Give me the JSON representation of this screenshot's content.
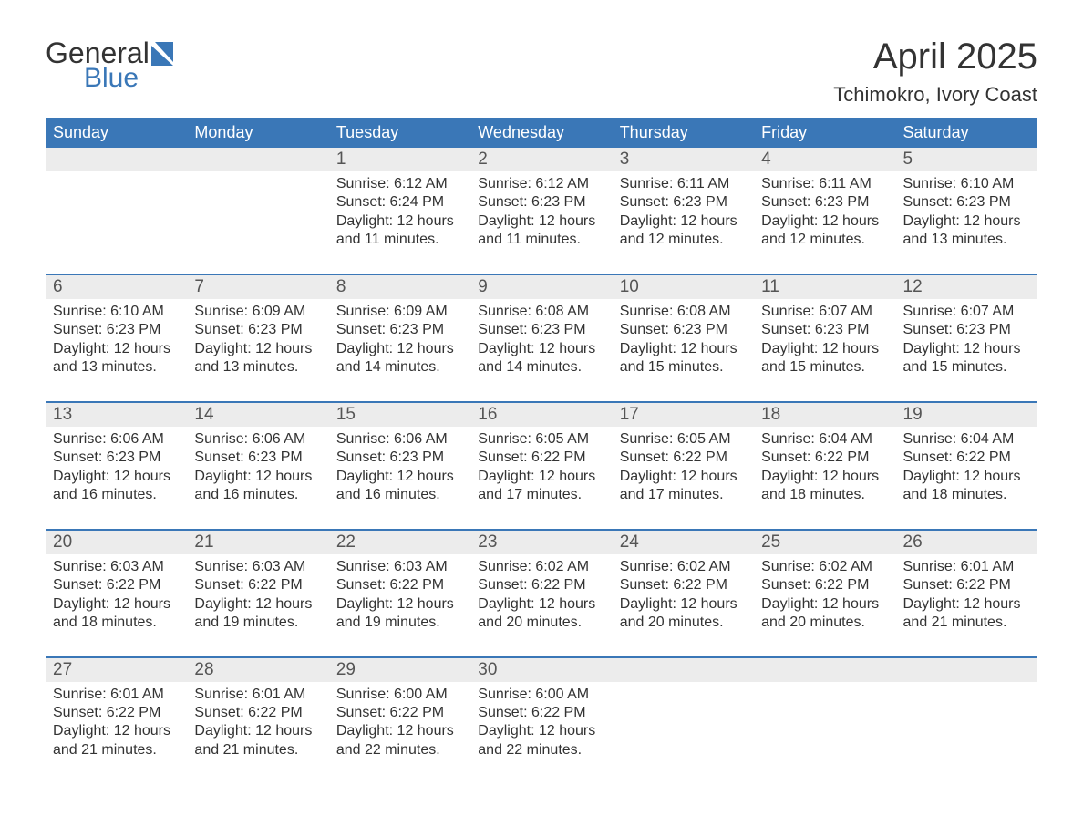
{
  "brand": {
    "name_part1": "General",
    "name_part2": "Blue"
  },
  "title": "April 2025",
  "subtitle": "Tchimokro, Ivory Coast",
  "colors": {
    "header_bg": "#3a77b7",
    "daynum_bg": "#ececec",
    "week_border": "#3a77b7",
    "text": "#333333",
    "background": "#ffffff"
  },
  "day_headers": [
    "Sunday",
    "Monday",
    "Tuesday",
    "Wednesday",
    "Thursday",
    "Friday",
    "Saturday"
  ],
  "weeks": [
    [
      {
        "num": "",
        "sunrise": "",
        "sunset": "",
        "daylight": ""
      },
      {
        "num": "",
        "sunrise": "",
        "sunset": "",
        "daylight": ""
      },
      {
        "num": "1",
        "sunrise": "Sunrise: 6:12 AM",
        "sunset": "Sunset: 6:24 PM",
        "daylight": "Daylight: 12 hours and 11 minutes."
      },
      {
        "num": "2",
        "sunrise": "Sunrise: 6:12 AM",
        "sunset": "Sunset: 6:23 PM",
        "daylight": "Daylight: 12 hours and 11 minutes."
      },
      {
        "num": "3",
        "sunrise": "Sunrise: 6:11 AM",
        "sunset": "Sunset: 6:23 PM",
        "daylight": "Daylight: 12 hours and 12 minutes."
      },
      {
        "num": "4",
        "sunrise": "Sunrise: 6:11 AM",
        "sunset": "Sunset: 6:23 PM",
        "daylight": "Daylight: 12 hours and 12 minutes."
      },
      {
        "num": "5",
        "sunrise": "Sunrise: 6:10 AM",
        "sunset": "Sunset: 6:23 PM",
        "daylight": "Daylight: 12 hours and 13 minutes."
      }
    ],
    [
      {
        "num": "6",
        "sunrise": "Sunrise: 6:10 AM",
        "sunset": "Sunset: 6:23 PM",
        "daylight": "Daylight: 12 hours and 13 minutes."
      },
      {
        "num": "7",
        "sunrise": "Sunrise: 6:09 AM",
        "sunset": "Sunset: 6:23 PM",
        "daylight": "Daylight: 12 hours and 13 minutes."
      },
      {
        "num": "8",
        "sunrise": "Sunrise: 6:09 AM",
        "sunset": "Sunset: 6:23 PM",
        "daylight": "Daylight: 12 hours and 14 minutes."
      },
      {
        "num": "9",
        "sunrise": "Sunrise: 6:08 AM",
        "sunset": "Sunset: 6:23 PM",
        "daylight": "Daylight: 12 hours and 14 minutes."
      },
      {
        "num": "10",
        "sunrise": "Sunrise: 6:08 AM",
        "sunset": "Sunset: 6:23 PM",
        "daylight": "Daylight: 12 hours and 15 minutes."
      },
      {
        "num": "11",
        "sunrise": "Sunrise: 6:07 AM",
        "sunset": "Sunset: 6:23 PM",
        "daylight": "Daylight: 12 hours and 15 minutes."
      },
      {
        "num": "12",
        "sunrise": "Sunrise: 6:07 AM",
        "sunset": "Sunset: 6:23 PM",
        "daylight": "Daylight: 12 hours and 15 minutes."
      }
    ],
    [
      {
        "num": "13",
        "sunrise": "Sunrise: 6:06 AM",
        "sunset": "Sunset: 6:23 PM",
        "daylight": "Daylight: 12 hours and 16 minutes."
      },
      {
        "num": "14",
        "sunrise": "Sunrise: 6:06 AM",
        "sunset": "Sunset: 6:23 PM",
        "daylight": "Daylight: 12 hours and 16 minutes."
      },
      {
        "num": "15",
        "sunrise": "Sunrise: 6:06 AM",
        "sunset": "Sunset: 6:23 PM",
        "daylight": "Daylight: 12 hours and 16 minutes."
      },
      {
        "num": "16",
        "sunrise": "Sunrise: 6:05 AM",
        "sunset": "Sunset: 6:22 PM",
        "daylight": "Daylight: 12 hours and 17 minutes."
      },
      {
        "num": "17",
        "sunrise": "Sunrise: 6:05 AM",
        "sunset": "Sunset: 6:22 PM",
        "daylight": "Daylight: 12 hours and 17 minutes."
      },
      {
        "num": "18",
        "sunrise": "Sunrise: 6:04 AM",
        "sunset": "Sunset: 6:22 PM",
        "daylight": "Daylight: 12 hours and 18 minutes."
      },
      {
        "num": "19",
        "sunrise": "Sunrise: 6:04 AM",
        "sunset": "Sunset: 6:22 PM",
        "daylight": "Daylight: 12 hours and 18 minutes."
      }
    ],
    [
      {
        "num": "20",
        "sunrise": "Sunrise: 6:03 AM",
        "sunset": "Sunset: 6:22 PM",
        "daylight": "Daylight: 12 hours and 18 minutes."
      },
      {
        "num": "21",
        "sunrise": "Sunrise: 6:03 AM",
        "sunset": "Sunset: 6:22 PM",
        "daylight": "Daylight: 12 hours and 19 minutes."
      },
      {
        "num": "22",
        "sunrise": "Sunrise: 6:03 AM",
        "sunset": "Sunset: 6:22 PM",
        "daylight": "Daylight: 12 hours and 19 minutes."
      },
      {
        "num": "23",
        "sunrise": "Sunrise: 6:02 AM",
        "sunset": "Sunset: 6:22 PM",
        "daylight": "Daylight: 12 hours and 20 minutes."
      },
      {
        "num": "24",
        "sunrise": "Sunrise: 6:02 AM",
        "sunset": "Sunset: 6:22 PM",
        "daylight": "Daylight: 12 hours and 20 minutes."
      },
      {
        "num": "25",
        "sunrise": "Sunrise: 6:02 AM",
        "sunset": "Sunset: 6:22 PM",
        "daylight": "Daylight: 12 hours and 20 minutes."
      },
      {
        "num": "26",
        "sunrise": "Sunrise: 6:01 AM",
        "sunset": "Sunset: 6:22 PM",
        "daylight": "Daylight: 12 hours and 21 minutes."
      }
    ],
    [
      {
        "num": "27",
        "sunrise": "Sunrise: 6:01 AM",
        "sunset": "Sunset: 6:22 PM",
        "daylight": "Daylight: 12 hours and 21 minutes."
      },
      {
        "num": "28",
        "sunrise": "Sunrise: 6:01 AM",
        "sunset": "Sunset: 6:22 PM",
        "daylight": "Daylight: 12 hours and 21 minutes."
      },
      {
        "num": "29",
        "sunrise": "Sunrise: 6:00 AM",
        "sunset": "Sunset: 6:22 PM",
        "daylight": "Daylight: 12 hours and 22 minutes."
      },
      {
        "num": "30",
        "sunrise": "Sunrise: 6:00 AM",
        "sunset": "Sunset: 6:22 PM",
        "daylight": "Daylight: 12 hours and 22 minutes."
      },
      {
        "num": "",
        "sunrise": "",
        "sunset": "",
        "daylight": ""
      },
      {
        "num": "",
        "sunrise": "",
        "sunset": "",
        "daylight": ""
      },
      {
        "num": "",
        "sunrise": "",
        "sunset": "",
        "daylight": ""
      }
    ]
  ]
}
